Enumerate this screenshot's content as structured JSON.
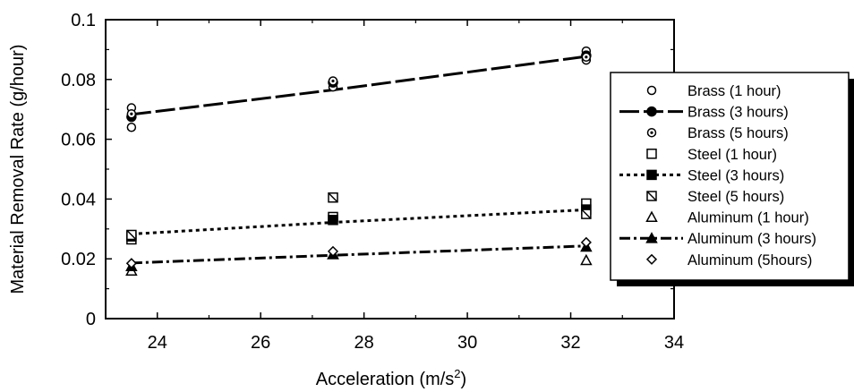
{
  "chart_data": {
    "type": "scatter",
    "xlabel": "Acceleration (m/s",
    "xlabel_sup": "2",
    "xlabel_end": ")",
    "ylabel": "Material Removal Rate (g/hour)",
    "xlim": [
      23,
      34
    ],
    "ylim": [
      0,
      0.1
    ],
    "xticks": [
      24,
      26,
      28,
      30,
      32,
      34
    ],
    "yticks": [
      0,
      0.02,
      0.04,
      0.06,
      0.08,
      0.1
    ],
    "xtick_labels": [
      "24",
      "26",
      "28",
      "30",
      "32",
      "34"
    ],
    "ytick_labels": [
      "0",
      "0.02",
      "0.04",
      "0.06",
      "0.08",
      "0.1"
    ],
    "grid": false,
    "legend_position": "right",
    "series": [
      {
        "name": "Brass (1 hour)",
        "marker": "circle-open",
        "line": "none",
        "x": [
          23.5,
          23.5,
          27.4,
          32.3,
          32.3
        ],
        "y": [
          0.0705,
          0.064,
          0.0775,
          0.0865,
          0.0895
        ]
      },
      {
        "name": "Brass (3 hours)",
        "marker": "circle-filled",
        "line": "longdash",
        "x": [
          23.5,
          27.4,
          32.3
        ],
        "y": [
          0.0675,
          0.079,
          0.088
        ]
      },
      {
        "name": "Brass (5 hours)",
        "marker": "circle-dot",
        "line": "none",
        "x": [
          23.5,
          27.4,
          32.3
        ],
        "y": [
          0.0685,
          0.0795,
          0.0875
        ]
      },
      {
        "name": "Steel (1 hour)",
        "marker": "square-open",
        "line": "none",
        "x": [
          23.5,
          27.4,
          32.3
        ],
        "y": [
          0.0265,
          0.034,
          0.0385
        ]
      },
      {
        "name": "Steel (3 hours)",
        "marker": "square-filled",
        "line": "dotted",
        "x": [
          23.5,
          27.4,
          32.3
        ],
        "y": [
          0.0275,
          0.033,
          0.0365
        ]
      },
      {
        "name": "Steel (5 hours)",
        "marker": "square-hatched",
        "line": "none",
        "x": [
          23.5,
          27.4,
          32.3
        ],
        "y": [
          0.028,
          0.0405,
          0.035
        ]
      },
      {
        "name": "Aluminum (1 hour)",
        "marker": "triangle-open",
        "line": "none",
        "x": [
          23.5,
          27.4,
          32.3
        ],
        "y": [
          0.016,
          0.0215,
          0.0195
        ]
      },
      {
        "name": "Aluminum (3 hours)",
        "marker": "triangle-filled",
        "line": "dashdot",
        "x": [
          23.5,
          27.4,
          32.3
        ],
        "y": [
          0.0175,
          0.0215,
          0.024
        ]
      },
      {
        "name": "Aluminum (5hours)",
        "marker": "diamond-open",
        "line": "none",
        "x": [
          23.5,
          27.4,
          32.3
        ],
        "y": [
          0.0185,
          0.0225,
          0.0255
        ]
      }
    ],
    "fit_lines": [
      {
        "series": "Brass (3 hours)",
        "style": "longdash",
        "x": [
          23.5,
          27.4,
          32.3
        ],
        "y": [
          0.0683,
          0.0765,
          0.0877
        ]
      },
      {
        "series": "Steel (3 hours)",
        "style": "dotted",
        "x": [
          23.5,
          27.4,
          32.3
        ],
        "y": [
          0.0283,
          0.0322,
          0.0364
        ]
      },
      {
        "series": "Aluminum (3 hours)",
        "style": "dashdot",
        "x": [
          23.5,
          27.4,
          32.3
        ],
        "y": [
          0.0186,
          0.0212,
          0.0243
        ]
      }
    ]
  }
}
